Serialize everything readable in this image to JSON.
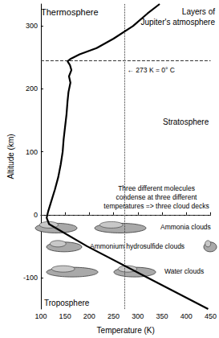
{
  "chart_data": {
    "type": "line",
    "title": "Layers of\nJupiter's atmosphere",
    "x_label": "Temperature (K)",
    "y_label": "Altitude (km)",
    "x": [
      345,
      320,
      290,
      250,
      215,
      180,
      162,
      155,
      160,
      163,
      158,
      161,
      157,
      155,
      153,
      150,
      147,
      145,
      141,
      136,
      129,
      121,
      115,
      112,
      117,
      195,
      320,
      445
    ],
    "values": [
      335,
      320,
      300,
      280,
      265,
      255,
      248,
      244,
      238,
      230,
      220,
      210,
      195,
      180,
      160,
      140,
      120,
      100,
      80,
      60,
      40,
      20,
      5,
      -5,
      -15,
      -50,
      -100,
      -150
    ],
    "color": "#000000",
    "xlim": [
      100,
      450
    ],
    "xticks": [
      100,
      150,
      200,
      250,
      300,
      350,
      400,
      450
    ],
    "ylim": [
      -150,
      335
    ],
    "yticks": [
      -100,
      0,
      100,
      200,
      300
    ],
    "grid": false,
    "layers": [
      "Thermosphere",
      "Stratosphere",
      "Troposphere"
    ],
    "boundaries": [
      0,
      245
    ],
    "reference_line": {
      "x": 273,
      "label": "← 273 K = 0° C"
    },
    "note": "Three different molecules\ncondense at three different\ntemperatures => three cloud decks",
    "clouds": [
      {
        "label": "Ammonia clouds",
        "altitude": -20
      },
      {
        "label": "Ammonium hydrosulfide clouds",
        "altitude": -50
      },
      {
        "label": "Water clouds",
        "altitude": -90
      }
    ]
  }
}
